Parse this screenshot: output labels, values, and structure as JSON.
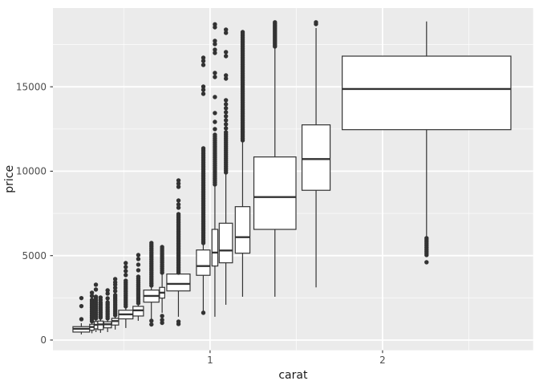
{
  "chart_data": {
    "type": "boxplot",
    "title": "",
    "xlabel": "carat",
    "ylabel": "price",
    "x_domain": [
      0.089,
      2.873
    ],
    "y_domain": [
      -605,
      19665
    ],
    "x_ticks": [
      {
        "v": 1,
        "label": "1"
      },
      {
        "v": 2,
        "label": "2"
      }
    ],
    "y_ticks": [
      {
        "v": 0,
        "label": "0"
      },
      {
        "v": 5000,
        "label": "5000"
      },
      {
        "v": 10000,
        "label": "10000"
      },
      {
        "v": 15000,
        "label": "15000"
      }
    ],
    "x_minor": [
      0.5,
      1.5,
      2.5
    ],
    "y_minor": [
      2500,
      7500,
      12500,
      17500
    ],
    "grid": true,
    "legend": "none",
    "colors": {
      "panel": "#EBEBEB",
      "grid_major": "#FFFFFF",
      "grid_minor": "#FFFFFF",
      "stroke": "#333333",
      "box_fill": "#FFFFFF",
      "tick_text": "#4D4D4D",
      "title_text": "#1A1A1A"
    },
    "boxes": [
      {
        "x1": 0.205,
        "x2": 0.302,
        "lo": 333,
        "q1": 475,
        "med": 665,
        "q3": 795,
        "hi": 1000
      },
      {
        "x1": 0.302,
        "x2": 0.328,
        "lo": 405,
        "q1": 585,
        "med": 775,
        "q3": 935,
        "hi": 1095
      },
      {
        "x1": 0.328,
        "x2": 0.349,
        "lo": 475,
        "q1": 665,
        "med": 905,
        "q3": 1095,
        "hi": 1235
      },
      {
        "x1": 0.349,
        "x2": 0.381,
        "lo": 430,
        "q1": 620,
        "med": 925,
        "q3": 1125,
        "hi": 1285
      },
      {
        "x1": 0.384,
        "x2": 0.428,
        "lo": 475,
        "q1": 725,
        "med": 935,
        "q3": 1080,
        "hi": 1235
      },
      {
        "x1": 0.43,
        "x2": 0.47,
        "lo": 620,
        "q1": 890,
        "med": 1125,
        "q3": 1285,
        "hi": 1425
      },
      {
        "x1": 0.47,
        "x2": 0.553,
        "lo": 715,
        "q1": 1255,
        "med": 1520,
        "q3": 1765,
        "hi": 1950
      },
      {
        "x1": 0.553,
        "x2": 0.614,
        "lo": 1140,
        "q1": 1425,
        "med": 1760,
        "q3": 1995,
        "hi": 2140
      },
      {
        "x1": 0.615,
        "x2": 0.704,
        "lo": 1235,
        "q1": 2245,
        "med": 2615,
        "q3": 2960,
        "hi": 3230
      },
      {
        "x1": 0.707,
        "x2": 0.737,
        "lo": 1615,
        "q1": 2485,
        "med": 2805,
        "q3": 3120,
        "hi": 3990
      },
      {
        "x1": 0.749,
        "x2": 0.884,
        "lo": 1380,
        "q1": 2910,
        "med": 3325,
        "q3": 3910,
        "hi": 4000
      },
      {
        "x1": 0.921,
        "x2": 1.0,
        "lo": 1695,
        "q1": 3835,
        "med": 4385,
        "q3": 5335,
        "hi": 5750
      },
      {
        "x1": 1.011,
        "x2": 1.045,
        "lo": 1380,
        "q1": 4385,
        "med": 5180,
        "q3": 6555,
        "hi": 9215
      },
      {
        "x1": 1.053,
        "x2": 1.13,
        "lo": 2090,
        "q1": 4575,
        "med": 5305,
        "q3": 6920,
        "hi": 9930
      },
      {
        "x1": 1.146,
        "x2": 1.231,
        "lo": 2565,
        "q1": 5145,
        "med": 6095,
        "q3": 7900,
        "hi": 11830
      },
      {
        "x1": 1.254,
        "x2": 1.498,
        "lo": 2565,
        "q1": 6555,
        "med": 8470,
        "q3": 10845,
        "hi": 17370
      },
      {
        "x1": 1.533,
        "x2": 1.696,
        "lo": 3120,
        "q1": 8870,
        "med": 10720,
        "q3": 12745,
        "hi": 18480
      },
      {
        "x1": 1.766,
        "x2": 2.744,
        "lo": 6080,
        "q1": 12460,
        "med": 14870,
        "q3": 16815,
        "hi": 18870
      }
    ],
    "outlier_columns": [
      {
        "carat": 0.254,
        "dots": [
          1235,
          2010,
          2485
        ]
      },
      {
        "carat": 0.315,
        "run": {
          "from": 1116,
          "to": 2375,
          "n": 12
        },
        "dots": [
          2615,
          2805
        ]
      },
      {
        "carat": 0.338,
        "run": {
          "from": 1283,
          "to": 2565,
          "n": 12
        },
        "dots": [
          2995,
          3280
        ]
      },
      {
        "carat": 0.365,
        "run": {
          "from": 1330,
          "to": 2233,
          "n": 10
        },
        "dots": [
          2375,
          2520
        ]
      },
      {
        "carat": 0.406,
        "run": {
          "from": 1283,
          "to": 2233,
          "n": 10
        },
        "dots": [
          2470,
          2755,
          2945
        ]
      },
      {
        "carat": 0.45,
        "run": {
          "from": 1473,
          "to": 2660,
          "n": 12
        },
        "dots": [
          2900,
          3090,
          3280,
          3420,
          3610
        ]
      },
      {
        "carat": 0.511,
        "run": {
          "from": 1995,
          "to": 3515,
          "n": 15
        },
        "dots": [
          3850,
          4085,
          4325,
          4560
        ]
      },
      {
        "carat": 0.584,
        "run": {
          "from": 2185,
          "to": 3755,
          "n": 14
        },
        "dots": [
          4135,
          4465,
          4800,
          5035
        ]
      },
      {
        "carat": 0.66,
        "run": {
          "from": 3230,
          "to": 5750,
          "n": 24
        },
        "dots": [
          925,
          1140
        ]
      },
      {
        "carat": 0.722,
        "run": {
          "from": 3990,
          "to": 5510,
          "n": 14
        },
        "dots": [
          1020,
          1190,
          1425
        ]
      },
      {
        "carat": 0.817,
        "run": {
          "from": 3990,
          "to": 7460,
          "n": 35
        },
        "dots": [
          950,
          1095,
          7840,
          8030,
          8265,
          9075,
          9265,
          9455
        ]
      },
      {
        "carat": 0.961,
        "run": {
          "from": 5750,
          "to": 11355,
          "n": 54
        },
        "dots": [
          1615,
          14585,
          14820,
          15010,
          16295,
          16530,
          16720
        ]
      },
      {
        "carat": 1.028,
        "run": {
          "from": 9215,
          "to": 12160,
          "n": 27
        },
        "dots": [
          12495,
          12920,
          13445,
          14395,
          15580,
          15820,
          17005,
          17195,
          17530,
          17720,
          18525,
          18700
        ]
      },
      {
        "carat": 1.092,
        "run": {
          "from": 9930,
          "to": 12305,
          "n": 21
        },
        "dots": [
          12540,
          12780,
          13015,
          13255,
          13490,
          13730,
          13965,
          14205,
          15485,
          15675,
          16815,
          17055,
          18195,
          18385
        ]
      },
      {
        "carat": 1.189,
        "run": {
          "from": 11830,
          "to": 18240,
          "n": 61
        },
        "dots": []
      },
      {
        "carat": 1.376,
        "run": {
          "from": 17385,
          "to": 18820,
          "n": 16
        },
        "dots": []
      },
      {
        "carat": 1.614,
        "dots": [
          18715,
          18820
        ]
      },
      {
        "carat": 2.255,
        "run": {
          "from": 5035,
          "to": 6035,
          "n": 10
        },
        "dots": [
          4610
        ]
      }
    ]
  }
}
